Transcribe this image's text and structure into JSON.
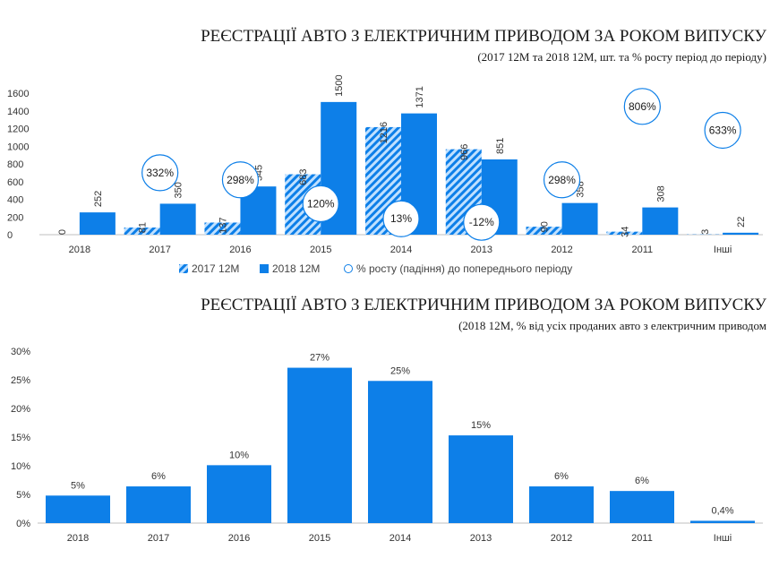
{
  "chart_data": [
    {
      "type": "bar",
      "title": "РЕЄСТРАЦІЇ АВТО З ЕЛЕКТРИЧНИМ ПРИВОДОМ ЗА РОКОМ ВИПУСКУ",
      "subtitle": "(2017 12М та 2018 12М, шт. та % росту період до періоду)",
      "categories": [
        "2018",
        "2017",
        "2016",
        "2015",
        "2014",
        "2013",
        "2012",
        "2011",
        "Інші"
      ],
      "ylim": [
        0,
        1600
      ],
      "yticks": [
        "0",
        "200",
        "400",
        "600",
        "800",
        "1000",
        "1200",
        "1400",
        "1600"
      ],
      "grid": false,
      "legend": "bottom",
      "series": [
        {
          "name": "2017 12М",
          "values": [
            0,
            81,
            137,
            683,
            1216,
            966,
            90,
            34,
            3
          ],
          "labels": [
            "0",
            "81",
            "137",
            "683",
            "1216",
            "966",
            "90",
            "34",
            "3"
          ],
          "color": "#0d7fe8",
          "pattern": "hatched"
        },
        {
          "name": "2018 12М",
          "values": [
            252,
            350,
            545,
            1500,
            1371,
            851,
            358,
            308,
            22
          ],
          "labels": [
            "252",
            "350",
            "545",
            "1500",
            "1371",
            "851",
            "358",
            "308",
            "22"
          ],
          "color": "#0d7fe8"
        },
        {
          "name": "% росту (падіння) до попереднього періоду",
          "values": [
            null,
            332,
            298,
            120,
            13,
            -12,
            298,
            806,
            633
          ],
          "labels": [
            "",
            "332%",
            "298%",
            "120%",
            "13%",
            "-12%",
            "298%",
            "806%",
            "633%"
          ],
          "y_position": [
            null,
            700,
            620,
            350,
            180,
            140,
            620,
            1450,
            1180
          ],
          "marker": "circle"
        }
      ]
    },
    {
      "type": "bar",
      "title": "РЕЄСТРАЦІЇ АВТО З ЕЛЕКТРИЧНИМ ПРИВОДОМ ЗА РОКОМ ВИПУСКУ",
      "subtitle": "(2018 12М, % від усіх проданих авто з електричним приводом",
      "categories": [
        "2018",
        "2017",
        "2016",
        "2015",
        "2014",
        "2013",
        "2012",
        "2011",
        "Інші"
      ],
      "values": [
        4.8,
        6.4,
        10.1,
        27.1,
        24.8,
        15.3,
        6.4,
        5.6,
        0.4
      ],
      "labels": [
        "5%",
        "6%",
        "10%",
        "27%",
        "25%",
        "15%",
        "6%",
        "6%",
        "0,4%"
      ],
      "ylim": [
        0,
        30
      ],
      "yticks": [
        "0%",
        "5%",
        "10%",
        "15%",
        "20%",
        "25%",
        "30%"
      ],
      "grid": false,
      "color": "#0d7fe8"
    }
  ]
}
